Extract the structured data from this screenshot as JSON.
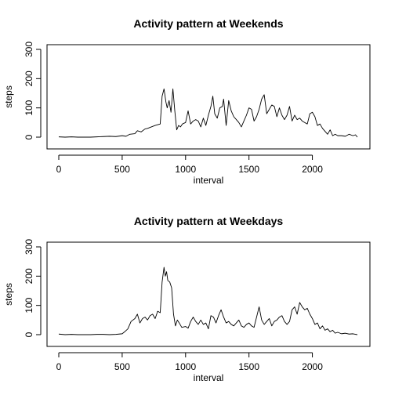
{
  "figure": {
    "background": "#ffffff",
    "line_color": "#000000"
  },
  "chart_data": [
    {
      "type": "line",
      "title": "Activity pattern at Weekends",
      "xlabel": "interval",
      "ylabel": "steps",
      "xlim": [
        0,
        2355
      ],
      "ylim": [
        0,
        300
      ],
      "xticks": [
        0,
        500,
        1000,
        1500,
        2000
      ],
      "yticks": [
        0,
        100,
        200,
        300
      ],
      "grid": false,
      "x": [
        0,
        50,
        100,
        150,
        200,
        250,
        300,
        350,
        400,
        450,
        500,
        530,
        560,
        600,
        620,
        650,
        680,
        700,
        730,
        760,
        800,
        815,
        830,
        845,
        855,
        870,
        885,
        900,
        915,
        930,
        945,
        960,
        975,
        1000,
        1020,
        1040,
        1060,
        1080,
        1100,
        1120,
        1140,
        1160,
        1180,
        1200,
        1215,
        1230,
        1250,
        1270,
        1290,
        1300,
        1320,
        1340,
        1360,
        1380,
        1400,
        1420,
        1440,
        1460,
        1480,
        1500,
        1520,
        1540,
        1560,
        1580,
        1600,
        1620,
        1640,
        1660,
        1680,
        1700,
        1720,
        1740,
        1760,
        1780,
        1800,
        1820,
        1840,
        1860,
        1880,
        1900,
        1920,
        1940,
        1960,
        1980,
        2000,
        2020,
        2040,
        2060,
        2080,
        2100,
        2120,
        2140,
        2160,
        2180,
        2200,
        2230,
        2260,
        2290,
        2320,
        2340,
        2355
      ],
      "y": [
        1,
        0,
        1,
        0,
        0,
        0,
        1,
        2,
        3,
        2,
        5,
        3,
        10,
        12,
        22,
        18,
        28,
        30,
        35,
        40,
        45,
        140,
        165,
        120,
        100,
        125,
        85,
        165,
        90,
        25,
        40,
        35,
        45,
        50,
        90,
        45,
        55,
        60,
        55,
        35,
        65,
        40,
        75,
        105,
        140,
        80,
        65,
        100,
        105,
        130,
        40,
        125,
        90,
        70,
        60,
        50,
        35,
        55,
        75,
        100,
        95,
        55,
        70,
        95,
        130,
        145,
        80,
        95,
        110,
        105,
        70,
        100,
        75,
        60,
        75,
        105,
        55,
        75,
        60,
        65,
        55,
        50,
        45,
        80,
        85,
        70,
        40,
        45,
        30,
        20,
        10,
        25,
        5,
        10,
        5,
        5,
        3,
        10,
        5,
        8,
        0
      ],
      "series": [
        {
          "name": ""
        }
      ]
    },
    {
      "type": "line",
      "title": "Activity pattern at Weekdays",
      "xlabel": "interval",
      "ylabel": "steps",
      "xlim": [
        0,
        2355
      ],
      "ylim": [
        0,
        300
      ],
      "xticks": [
        0,
        500,
        1000,
        1500,
        2000
      ],
      "yticks": [
        0,
        100,
        200,
        300
      ],
      "grid": false,
      "x": [
        0,
        50,
        100,
        150,
        200,
        250,
        300,
        350,
        400,
        450,
        500,
        520,
        545,
        570,
        600,
        620,
        640,
        660,
        680,
        700,
        720,
        740,
        760,
        780,
        800,
        815,
        830,
        840,
        850,
        860,
        875,
        890,
        905,
        920,
        935,
        950,
        970,
        1000,
        1020,
        1040,
        1060,
        1080,
        1100,
        1120,
        1140,
        1160,
        1180,
        1200,
        1220,
        1240,
        1260,
        1280,
        1300,
        1320,
        1340,
        1360,
        1380,
        1400,
        1420,
        1440,
        1460,
        1480,
        1500,
        1520,
        1540,
        1560,
        1580,
        1600,
        1620,
        1640,
        1660,
        1680,
        1700,
        1720,
        1740,
        1760,
        1780,
        1800,
        1820,
        1840,
        1860,
        1880,
        1900,
        1920,
        1940,
        1960,
        1980,
        2000,
        2020,
        2040,
        2060,
        2080,
        2100,
        2120,
        2140,
        2160,
        2180,
        2200,
        2230,
        2260,
        2290,
        2320,
        2355
      ],
      "y": [
        2,
        0,
        1,
        0,
        0,
        0,
        1,
        1,
        0,
        1,
        3,
        10,
        20,
        45,
        55,
        70,
        40,
        55,
        60,
        50,
        65,
        70,
        55,
        80,
        75,
        180,
        230,
        200,
        215,
        185,
        180,
        160,
        70,
        30,
        50,
        40,
        25,
        28,
        22,
        45,
        60,
        45,
        35,
        50,
        35,
        40,
        20,
        65,
        60,
        40,
        65,
        85,
        60,
        40,
        45,
        35,
        30,
        40,
        50,
        30,
        25,
        35,
        40,
        30,
        25,
        60,
        95,
        50,
        35,
        45,
        55,
        30,
        45,
        50,
        60,
        65,
        45,
        35,
        45,
        85,
        95,
        70,
        110,
        95,
        85,
        90,
        70,
        55,
        35,
        40,
        20,
        30,
        15,
        20,
        10,
        15,
        5,
        8,
        3,
        5,
        2,
        3,
        0
      ],
      "series": [
        {
          "name": ""
        }
      ]
    }
  ]
}
